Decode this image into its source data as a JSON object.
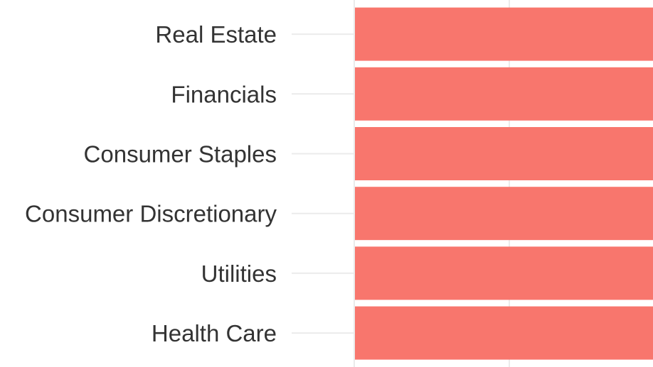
{
  "chart_data": {
    "type": "bar",
    "orientation": "horizontal",
    "categories": [
      "Real Estate",
      "Financials",
      "Consumer Staples",
      "Consumer Discretionary",
      "Utilities",
      "Health Care"
    ],
    "values": [
      null,
      null,
      null,
      null,
      null,
      null
    ],
    "bar_color": "#f8766d",
    "grid": true,
    "legend": "none",
    "title": "",
    "xlabel": "",
    "ylabel": ""
  }
}
